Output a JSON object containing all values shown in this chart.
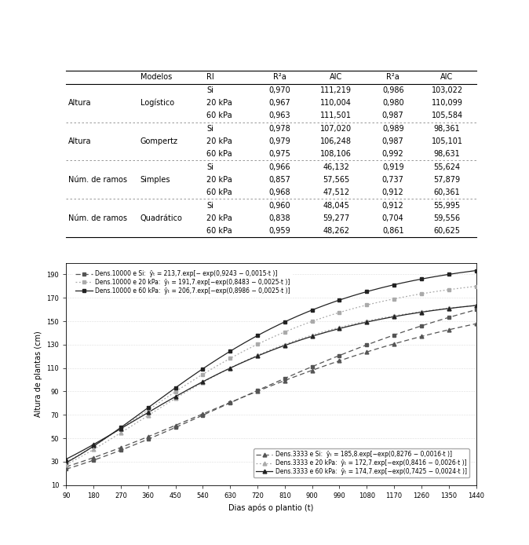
{
  "table": {
    "col_headers": [
      "",
      "Modelos",
      "RI",
      "R²a",
      "AIC",
      "R²a",
      "AIC"
    ],
    "rows": [
      [
        "Altura",
        "Logístico",
        "Si",
        "0,970",
        "111,219",
        "0,986",
        "103,022"
      ],
      [
        "",
        "",
        "20 kPa",
        "0,967",
        "110,004",
        "0,980",
        "110,099"
      ],
      [
        "",
        "",
        "60 kPa",
        "0,963",
        "111,501",
        "0,987",
        "105,584"
      ],
      [
        "Altura",
        "Gompertz",
        "Si",
        "0,978",
        "107,020",
        "0,989",
        "98,361"
      ],
      [
        "",
        "",
        "20 kPa",
        "0,979",
        "106,248",
        "0,987",
        "105,101"
      ],
      [
        "",
        "",
        "60 kPa",
        "0,975",
        "108,106",
        "0,992",
        "98,631"
      ],
      [
        "Núm. de ramos",
        "Simples",
        "Si",
        "0,966",
        "46,132",
        "0,919",
        "55,624"
      ],
      [
        "",
        "",
        "20 kPa",
        "0,857",
        "57,565",
        "0,737",
        "57,879"
      ],
      [
        "",
        "",
        "60 kPa",
        "0,968",
        "47,512",
        "0,912",
        "60,361"
      ],
      [
        "Núm. de ramos",
        "Quadrático",
        "Si",
        "0,960",
        "48,045",
        "0,912",
        "55,995"
      ],
      [
        "",
        "",
        "20 kPa",
        "0,838",
        "59,277",
        "0,704",
        "59,556"
      ],
      [
        "",
        "",
        "60 kPa",
        "0,959",
        "48,262",
        "0,861",
        "60,625"
      ]
    ],
    "dividers_after": [
      2,
      5,
      8
    ]
  },
  "curves": [
    {
      "label": "Dens.10000 e Si:  ŷₜ = 213,7.exp[− exp(0,9243 − 0,0015⋅t )]",
      "A": 213.7,
      "b": 0.9243,
      "c": 0.0015,
      "color": "#555555",
      "linestyle": "dashed",
      "marker": "s",
      "density": 10000
    },
    {
      "label": "Dens.10000 e 20 kPa:  ŷₜ = 191,7.exp[−exp(0,8483 − 0,0025⋅t )]",
      "A": 191.7,
      "b": 0.8483,
      "c": 0.0025,
      "color": "#aaaaaa",
      "linestyle": "dotted",
      "marker": "s",
      "density": 10000
    },
    {
      "label": "Dens.10000 e 60 kPa:  ŷₜ = 206,7.exp[−exp(0,8986 − 0,0025⋅t )]",
      "A": 206.7,
      "b": 0.8986,
      "c": 0.0025,
      "color": "#222222",
      "linestyle": "solid",
      "marker": "s",
      "density": 10000
    },
    {
      "label": "Dens.3333 e Si:  ŷₜ = 185,8.exp[−exp(0,8276 − 0,0016⋅t )]",
      "A": 185.8,
      "b": 0.8276,
      "c": 0.0016,
      "color": "#555555",
      "linestyle": "dashed",
      "marker": "^",
      "density": 3333
    },
    {
      "label": "Dens.3333 e 20 kPa:  ŷₜ = 172,7.exp[−exp(0,8416 − 0,0026⋅t )]",
      "A": 172.7,
      "b": 0.8416,
      "c": 0.0026,
      "color": "#aaaaaa",
      "linestyle": "dotted",
      "marker": "^",
      "density": 3333
    },
    {
      "label": "Dens.3333 e 60 kPa:  ŷₜ = 174,7.exp[−exp(0,7425 − 0,0024⋅t )]",
      "A": 174.7,
      "b": 0.7425,
      "c": 0.0024,
      "color": "#222222",
      "linestyle": "solid",
      "marker": "^",
      "density": 3333
    }
  ],
  "xlabel": "Dias após o plantio (t)",
  "ylabel": "Altura de plantas (cm)",
  "xlim": [
    90,
    1440
  ],
  "ylim": [
    10,
    200
  ],
  "xticks": [
    90,
    180,
    270,
    360,
    450,
    540,
    630,
    720,
    810,
    900,
    990,
    1080,
    1170,
    1260,
    1350,
    1440
  ],
  "yticks": [
    10,
    30,
    50,
    70,
    90,
    110,
    130,
    150,
    170,
    190
  ],
  "plot_bg": "#ffffff"
}
